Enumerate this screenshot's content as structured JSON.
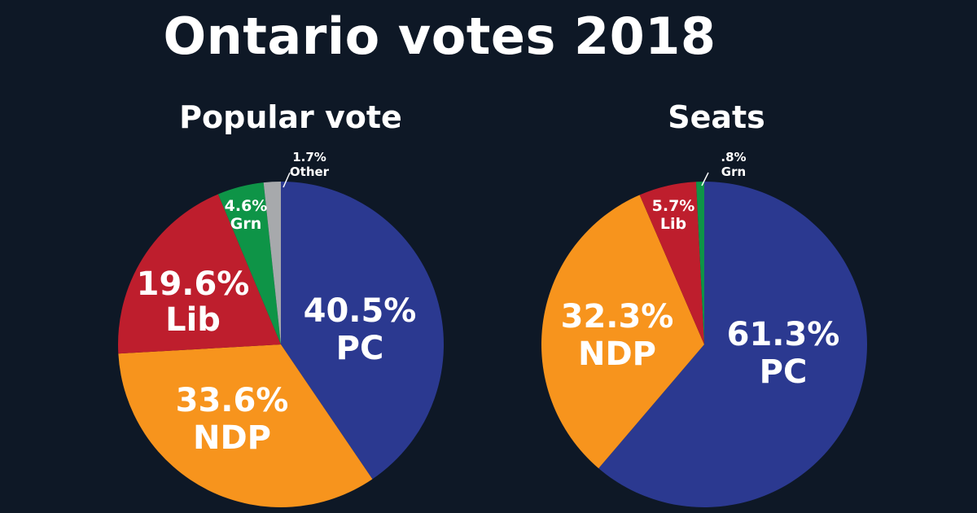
{
  "title": "Ontario votes 2018",
  "chart_data": [
    {
      "type": "pie",
      "title": "Popular vote",
      "slices": [
        {
          "name": "PC",
          "value": 40.5,
          "label": "40.5%",
          "color": "#2b3990"
        },
        {
          "name": "NDP",
          "value": 33.6,
          "label": "33.6%",
          "color": "#f7941d"
        },
        {
          "name": "Lib",
          "value": 19.6,
          "label": "19.6%",
          "color": "#be1e2d"
        },
        {
          "name": "Grn",
          "value": 4.6,
          "label": "4.6%",
          "color": "#0e9447"
        },
        {
          "name": "Other",
          "value": 1.7,
          "label": "1.7%",
          "color": "#a7a9ac"
        }
      ]
    },
    {
      "type": "pie",
      "title": "Seats",
      "slices": [
        {
          "name": "PC",
          "value": 61.3,
          "label": "61.3%",
          "color": "#2b3990"
        },
        {
          "name": "NDP",
          "value": 32.3,
          "label": "32.3%",
          "color": "#f7941d"
        },
        {
          "name": "Lib",
          "value": 5.7,
          "label": "5.7%",
          "color": "#be1e2d"
        },
        {
          "name": "Grn",
          "value": 0.8,
          "label": ".8%",
          "color": "#0e9447"
        }
      ]
    }
  ]
}
